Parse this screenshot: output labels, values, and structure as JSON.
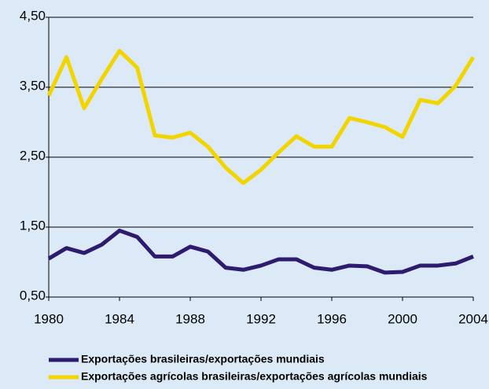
{
  "chart_data": {
    "type": "line",
    "x": [
      1980,
      1981,
      1982,
      1983,
      1984,
      1985,
      1986,
      1987,
      1988,
      1989,
      1990,
      1991,
      1992,
      1993,
      1994,
      1995,
      1996,
      1997,
      1998,
      1999,
      2000,
      2001,
      2002,
      2003,
      2004
    ],
    "series": [
      {
        "name": "Exportações brasileiras/exportações mundiais",
        "color": "#2e1a6e",
        "values": [
          1.05,
          1.2,
          1.13,
          1.25,
          1.45,
          1.36,
          1.08,
          1.08,
          1.22,
          1.15,
          0.92,
          0.89,
          0.95,
          1.04,
          1.04,
          0.92,
          0.89,
          0.95,
          0.94,
          0.85,
          0.86,
          0.95,
          0.95,
          0.98,
          1.08
        ]
      },
      {
        "name": "Exportações agrícolas brasileiras/exportações agrícolas mundiais",
        "color": "#f2d500",
        "values": [
          3.38,
          3.93,
          3.2,
          3.62,
          4.02,
          3.78,
          2.81,
          2.78,
          2.85,
          2.65,
          2.35,
          2.13,
          2.32,
          2.57,
          2.8,
          2.65,
          2.65,
          3.06,
          3.0,
          2.93,
          2.79,
          3.32,
          3.27,
          3.52,
          3.93
        ]
      }
    ],
    "xlim": [
      1980,
      2004
    ],
    "xticks": [
      1980,
      1984,
      1988,
      1992,
      1996,
      2000,
      2004
    ],
    "ylim": [
      0.5,
      4.5
    ],
    "yticks": [
      {
        "value": 0.5,
        "label": "0,50"
      },
      {
        "value": 1.5,
        "label": "1,50"
      },
      {
        "value": 2.5,
        "label": "2,50"
      },
      {
        "value": 3.5,
        "label": "3,50"
      },
      {
        "value": 4.5,
        "label": "4,50"
      }
    ],
    "grid": true
  }
}
